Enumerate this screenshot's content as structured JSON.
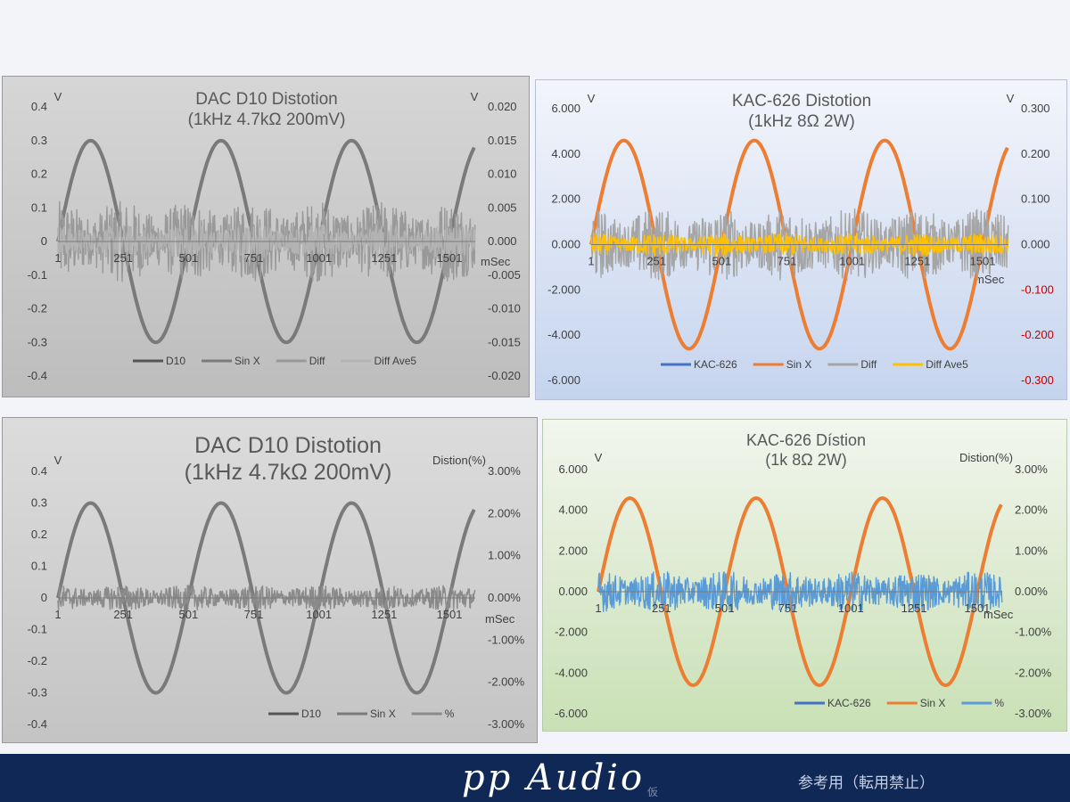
{
  "chart_data": [
    {
      "id": "p1",
      "type": "line",
      "title": "DAC D10 Distotion",
      "subtitle": "(1kHz 4.7kΩ 200mV)",
      "ylabel_left": "V",
      "ylabel_right": "V",
      "xlabel": "mSec",
      "ylim_left": [
        -0.4,
        0.4
      ],
      "ylim_right": [
        -0.02,
        0.02
      ],
      "yticks_left": [
        "0.4",
        "0.3",
        "0.2",
        "0.1",
        "0",
        "-0.1",
        "-0.2",
        "-0.3",
        "-0.4"
      ],
      "yticks_right": [
        "0.020",
        "0.015",
        "0.010",
        "0.005",
        "0.000",
        "-0.005",
        "-0.010",
        "-0.015",
        "-0.020"
      ],
      "x_range": [
        1,
        1600
      ],
      "xticks": [
        "1",
        "251",
        "501",
        "751",
        "1001",
        "1251",
        "1501"
      ],
      "legend": "bottom",
      "grid": false,
      "series": [
        {
          "name": "D10",
          "color": "#555555",
          "axis": "left",
          "kind": "sine",
          "amplitude": 0.3,
          "period": 500
        },
        {
          "name": "Sin X",
          "color": "#7a7a7a",
          "axis": "left",
          "kind": "sine",
          "amplitude": 0.3,
          "period": 500
        },
        {
          "name": "Diff",
          "color": "#999999",
          "axis": "right",
          "kind": "noise",
          "amplitude": 0.006
        },
        {
          "name": "Diff Ave5",
          "color": "#b3b3b3",
          "axis": "right",
          "kind": "noise",
          "amplitude": 0.0025
        }
      ]
    },
    {
      "id": "p2",
      "type": "line",
      "title": "KAC-626 Distotion",
      "subtitle": "(1kHz 8Ω 2W)",
      "ylabel_left": "V",
      "ylabel_right": "V",
      "xlabel": "mSec",
      "ylim_left": [
        -6,
        6
      ],
      "ylim_right": [
        -0.3,
        0.3
      ],
      "yticks_left": [
        "6.000",
        "4.000",
        "2.000",
        "0.000",
        "-2.000",
        "-4.000",
        "-6.000"
      ],
      "yticks_right": [
        "0.300",
        "0.200",
        "0.100",
        "0.000",
        "-0.100",
        "-0.200",
        "-0.300"
      ],
      "x_range": [
        1,
        1600
      ],
      "xticks": [
        "1",
        "251",
        "501",
        "751",
        "1001",
        "1251",
        "1501"
      ],
      "legend": "bottom",
      "grid": false,
      "series": [
        {
          "name": "KAC-626",
          "color": "#4472c4",
          "axis": "left",
          "kind": "sine",
          "amplitude": 4.6,
          "period": 500
        },
        {
          "name": "Sin X",
          "color": "#ed7d31",
          "axis": "left",
          "kind": "sine",
          "amplitude": 4.6,
          "period": 500
        },
        {
          "name": "Diff",
          "color": "#a5a5a5",
          "axis": "right",
          "kind": "noise",
          "amplitude": 0.08
        },
        {
          "name": "Diff Ave5",
          "color": "#ffc000",
          "axis": "right",
          "kind": "noise",
          "amplitude": 0.025
        }
      ]
    },
    {
      "id": "p3",
      "type": "line",
      "title": "DAC D10 Distotion",
      "subtitle": "(1kHz 4.7kΩ 200mV)",
      "ylabel_left": "V",
      "ylabel_right": "Distion(%)",
      "xlabel": "mSec",
      "ylim_left": [
        -0.4,
        0.4
      ],
      "ylim_right": [
        -3,
        3
      ],
      "yticks_left": [
        "0.4",
        "0.3",
        "0.2",
        "0.1",
        "0",
        "-0.1",
        "-0.2",
        "-0.3",
        "-0.4"
      ],
      "yticks_right": [
        "3.00%",
        "2.00%",
        "1.00%",
        "0.00%",
        "-1.00%",
        "-2.00%",
        "-3.00%"
      ],
      "x_range": [
        1,
        1600
      ],
      "xticks": [
        "1",
        "251",
        "501",
        "751",
        "1001",
        "1251",
        "1501"
      ],
      "legend": "bottom",
      "grid": false,
      "series": [
        {
          "name": "D10",
          "color": "#555555",
          "axis": "left",
          "kind": "sine",
          "amplitude": 0.3,
          "period": 500
        },
        {
          "name": "Sin X",
          "color": "#7a7a7a",
          "axis": "left",
          "kind": "sine",
          "amplitude": 0.3,
          "period": 500
        },
        {
          "name": "%",
          "color": "#8a8a8a",
          "axis": "right",
          "kind": "noise",
          "amplitude": 0.3
        }
      ]
    },
    {
      "id": "p4",
      "type": "line",
      "title": "KAC-626 Dístion",
      "subtitle": "(1k 8Ω 2W)",
      "ylabel_left": "V",
      "ylabel_right": "Distion(%)",
      "xlabel": "mSec",
      "ylim_left": [
        -6,
        6
      ],
      "ylim_right": [
        -3,
        3
      ],
      "yticks_left": [
        "6.000",
        "4.000",
        "2.000",
        "0.000",
        "-2.000",
        "-4.000",
        "-6.000"
      ],
      "yticks_right": [
        "3.00%",
        "2.00%",
        "1.00%",
        "0.00%",
        "-1.00%",
        "-2.00%",
        "-3.00%"
      ],
      "x_range": [
        1,
        1600
      ],
      "xticks": [
        "1",
        "251",
        "501",
        "751",
        "1001",
        "1251",
        "1501"
      ],
      "legend": "bottom",
      "grid": false,
      "series": [
        {
          "name": "KAC-626",
          "color": "#4472c4",
          "axis": "left",
          "kind": "sine",
          "amplitude": 4.6,
          "period": 500
        },
        {
          "name": "Sin X",
          "color": "#ed7d31",
          "axis": "left",
          "kind": "sine",
          "amplitude": 4.6,
          "period": 500
        },
        {
          "name": "%",
          "color": "#5b9bd5",
          "axis": "right",
          "kind": "noise",
          "amplitude": 0.5
        }
      ]
    }
  ],
  "footer": {
    "brand": "pp Audio",
    "mark": "仮",
    "note": "参考用（転用禁止）"
  }
}
